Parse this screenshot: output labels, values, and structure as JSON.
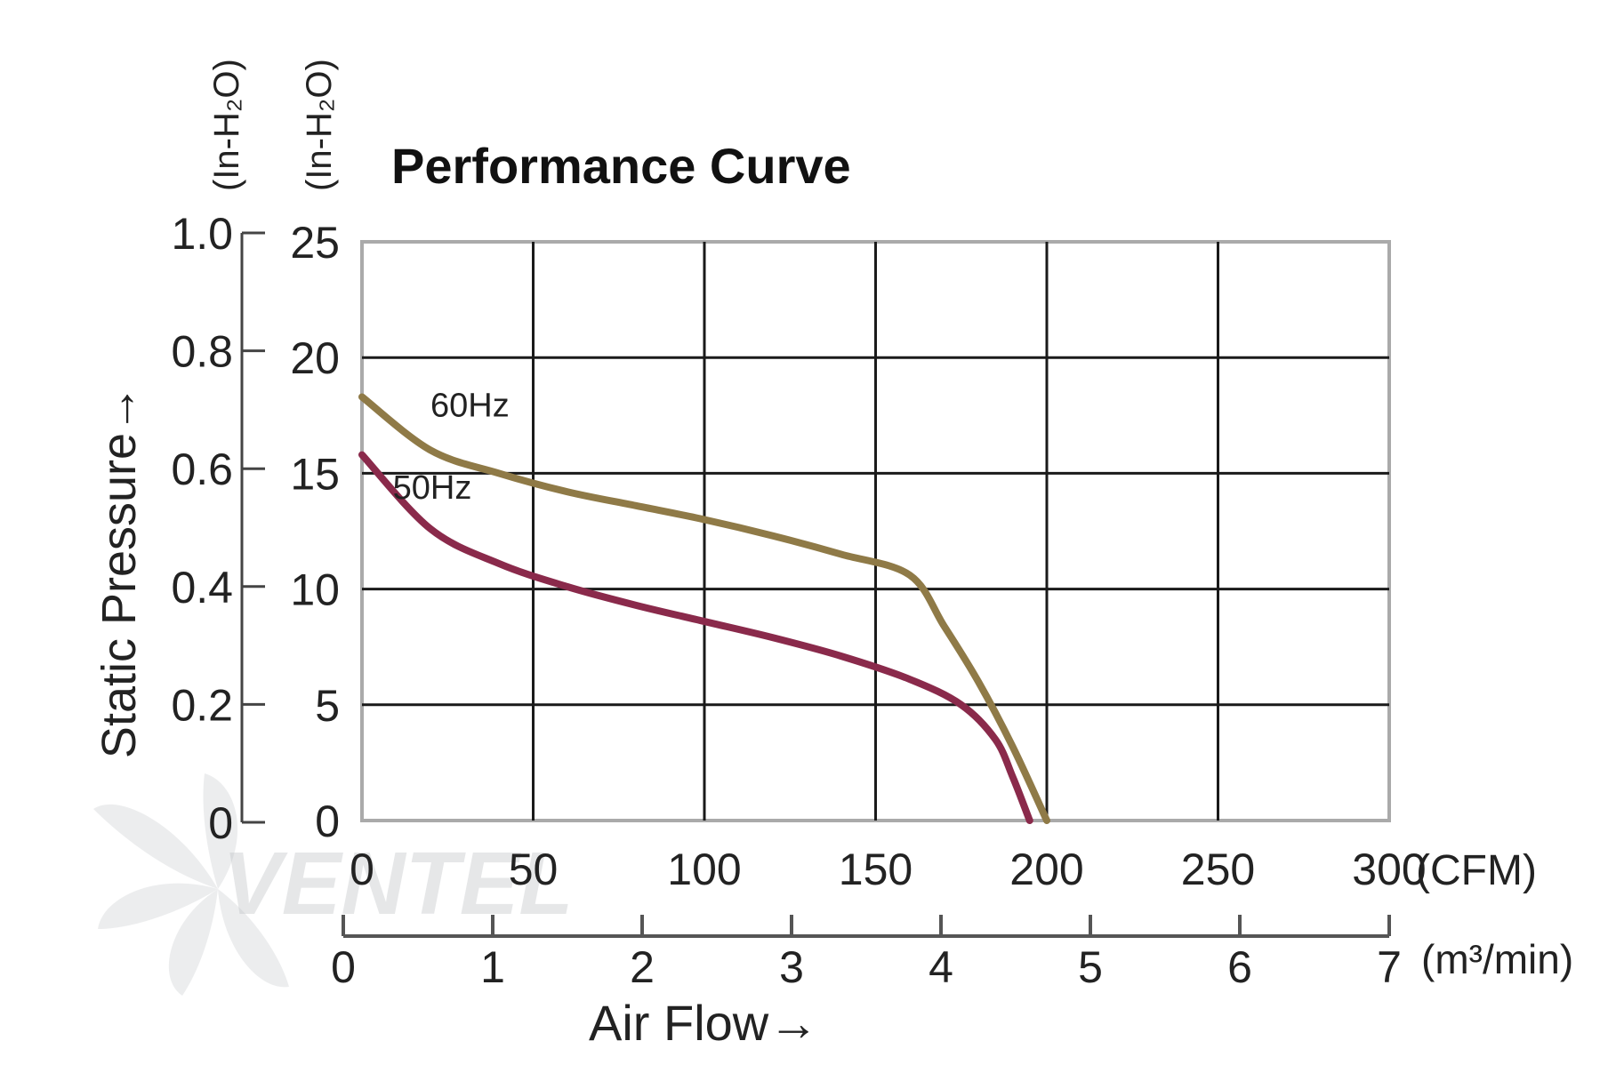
{
  "chart_data": {
    "type": "line",
    "title": "Performance Curve",
    "xlabel": "Air Flow→",
    "ylabel": "Static Pressure→",
    "x_unit": "(CFM)",
    "x2_unit": "(m³/min)",
    "y_unit_inh2o": "(In-H₂O)",
    "y_unit_mmaq": "(In-H₂O)",
    "xlim": [
      0,
      300
    ],
    "ylim": [
      0,
      25
    ],
    "x2lim": [
      0,
      7
    ],
    "y2lim": [
      0,
      1.0
    ],
    "x_ticks": [
      "0",
      "50",
      "100",
      "150",
      "200",
      "250",
      "300"
    ],
    "x2_ticks": [
      "0",
      "1",
      "2",
      "3",
      "4",
      "5",
      "6",
      "7"
    ],
    "y_ticks": [
      "0",
      "5",
      "10",
      "15",
      "20",
      "25"
    ],
    "y2_ticks": [
      "0",
      "0.2",
      "0.4",
      "0.6",
      "0.8",
      "1.0"
    ],
    "grid": true,
    "watermark": "VENTEL",
    "series": [
      {
        "name": "60Hz",
        "color": "#8f7a47",
        "x": [
          0,
          20,
          40,
          60,
          80,
          100,
          120,
          140,
          160,
          170,
          180,
          190,
          200
        ],
        "y": [
          18.3,
          16.0,
          15.0,
          14.2,
          13.6,
          13.0,
          12.3,
          11.5,
          10.6,
          8.4,
          6.0,
          3.2,
          0
        ]
      },
      {
        "name": "50Hz",
        "color": "#8a2a4b",
        "x": [
          0,
          20,
          40,
          60,
          80,
          100,
          120,
          140,
          160,
          175,
          185,
          190,
          195
        ],
        "y": [
          15.8,
          12.6,
          11.1,
          10.1,
          9.3,
          8.6,
          7.9,
          7.1,
          6.1,
          5.0,
          3.5,
          1.9,
          0
        ]
      }
    ]
  }
}
